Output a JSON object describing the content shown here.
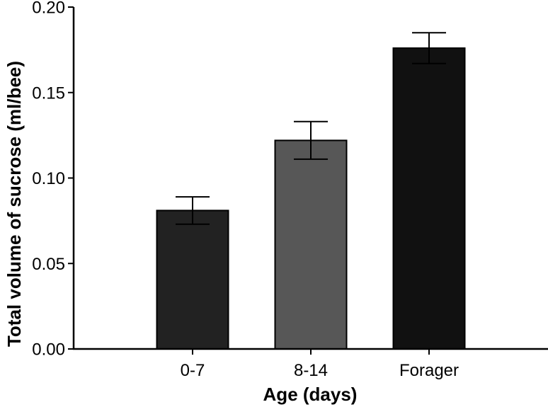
{
  "figure": {
    "background_color": "#ffffff",
    "axis_color": "#000000"
  },
  "chart_data": {
    "type": "bar",
    "title": "",
    "xlabel": "Age (days)",
    "ylabel": "Total volume of sucrose (ml/bee)",
    "categories": [
      "0-7",
      "8-14",
      "Forager"
    ],
    "values": [
      0.081,
      0.122,
      0.176
    ],
    "errors": [
      0.008,
      0.011,
      0.009
    ],
    "error_bar_style": "caps-both-ends",
    "bar_colors": [
      "#222222",
      "#575757",
      "#111111"
    ],
    "bar_outline_color": "#000000",
    "ylim": [
      0.0,
      0.2
    ],
    "yticks": [
      0.0,
      0.05,
      0.1,
      0.15,
      0.2
    ],
    "ytick_labels": [
      "0.00",
      "0.05",
      "0.10",
      "0.15",
      "0.20"
    ],
    "grid": false,
    "legend": false
  }
}
